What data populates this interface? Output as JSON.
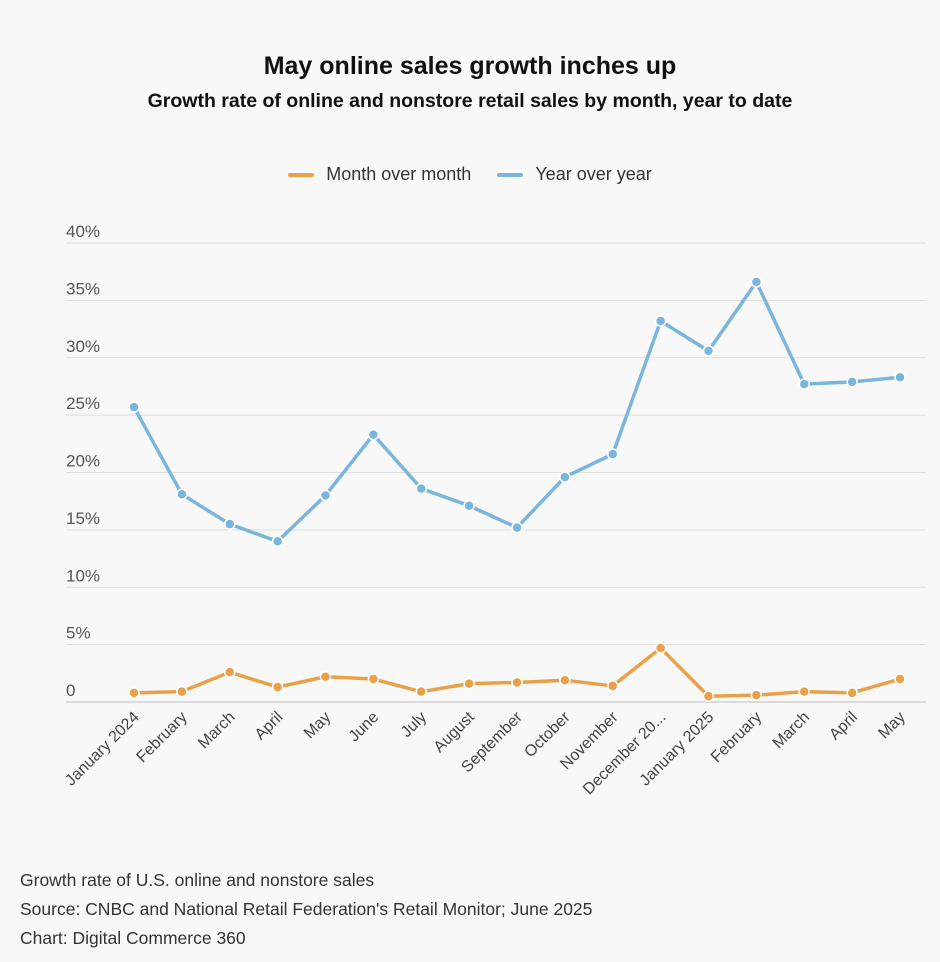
{
  "chart_data": {
    "type": "line",
    "title": "May online sales growth inches up",
    "subtitle": "Growth rate of online and nonstore retail sales by month, year to date",
    "categories": [
      "January 2024",
      "February",
      "March",
      "April",
      "May",
      "June",
      "July",
      "August",
      "September",
      "October",
      "November",
      "December 20...",
      "January 2025",
      "February",
      "March",
      "April",
      "May"
    ],
    "series": [
      {
        "name": "Month over month",
        "color": "#e8a04a",
        "values": [
          0.8,
          0.9,
          2.6,
          1.3,
          2.2,
          2.0,
          0.9,
          1.6,
          1.7,
          1.9,
          1.4,
          4.7,
          0.5,
          0.6,
          0.9,
          0.8,
          2.0
        ]
      },
      {
        "name": "Year over year",
        "color": "#7ab6dc",
        "values": [
          25.7,
          18.1,
          15.5,
          14.0,
          18.0,
          23.3,
          18.6,
          17.1,
          15.2,
          19.6,
          21.6,
          33.2,
          30.6,
          36.6,
          27.7,
          27.9,
          28.3
        ]
      }
    ],
    "y_ticks": [
      "0",
      "5%",
      "10%",
      "15%",
      "20%",
      "25%",
      "30%",
      "35%",
      "40%"
    ],
    "ylim": [
      0,
      40
    ],
    "grid": true,
    "legend_position": "top-center",
    "footer": [
      "Growth rate of U.S. online and nonstore sales",
      "Source: CNBC and National Retail Federation's Retail Monitor; June 2025",
      "Chart: Digital Commerce 360"
    ]
  }
}
